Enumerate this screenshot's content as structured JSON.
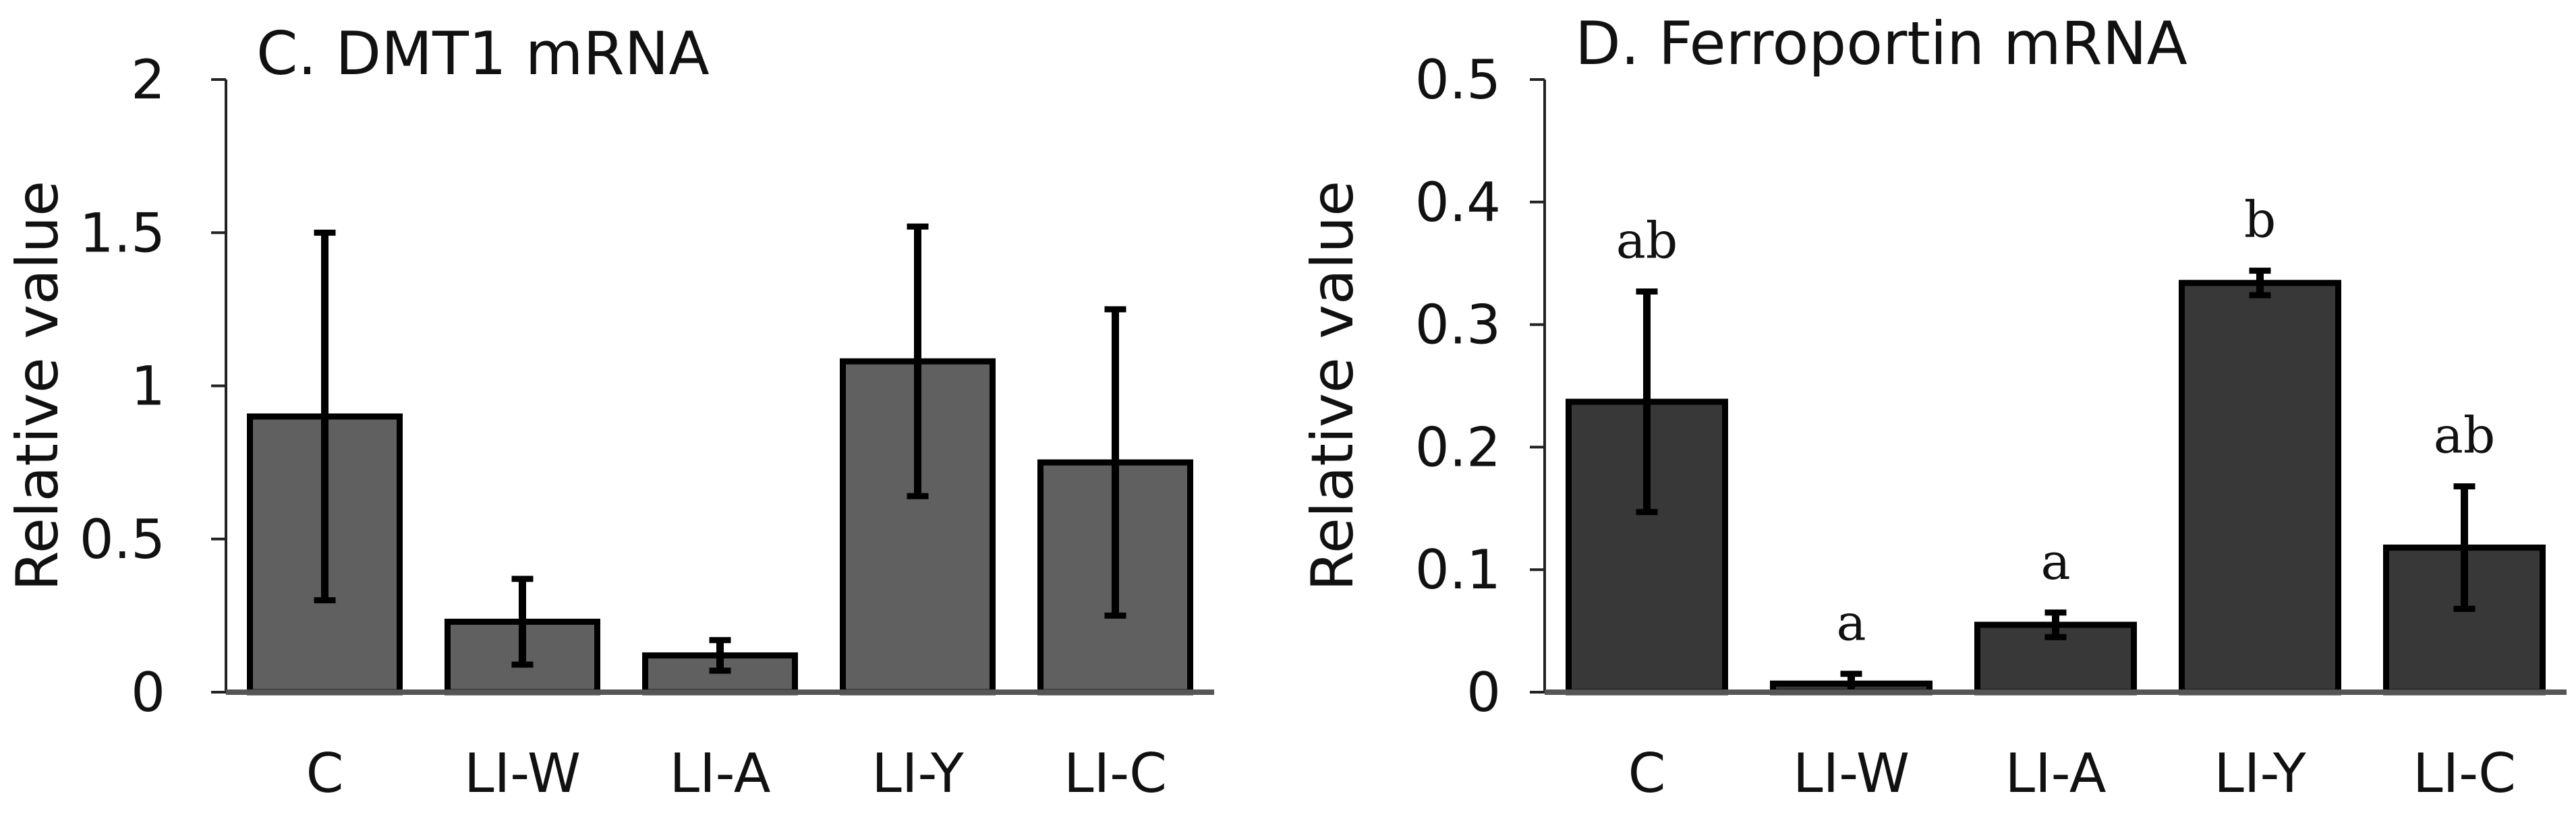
{
  "chart_data": [
    {
      "type": "bar",
      "title": "C. DMT1 mRNA",
      "xlabel": "",
      "ylabel": "Relative value",
      "categories": [
        "C",
        "LI-W",
        "LI-A",
        "LI-Y",
        "LI-C"
      ],
      "values": [
        0.9,
        0.23,
        0.12,
        1.08,
        0.75
      ],
      "errors": [
        0.6,
        0.14,
        0.05,
        0.44,
        0.5
      ],
      "ylim": [
        0,
        2
      ],
      "yticks": [
        "0",
        "0.5",
        "1",
        "1.5",
        "2"
      ],
      "color": "#606060",
      "grid": false
    },
    {
      "type": "bar",
      "title": "D. Ferroportin mRNA",
      "xlabel": "",
      "ylabel": "Relative value",
      "categories": [
        "C",
        "LI-W",
        "LI-A",
        "LI-Y",
        "LI-C"
      ],
      "values": [
        0.237,
        0.007,
        0.055,
        0.334,
        0.118
      ],
      "errors": [
        0.09,
        0.008,
        0.01,
        0.01,
        0.05
      ],
      "significance": [
        "ab",
        "a",
        "a",
        "b",
        "ab"
      ],
      "ylim": [
        0,
        0.5
      ],
      "yticks": [
        "0",
        "0.1",
        "0.2",
        "0.3",
        "0.4",
        "0.5"
      ],
      "color": "#383838",
      "grid": false
    }
  ]
}
